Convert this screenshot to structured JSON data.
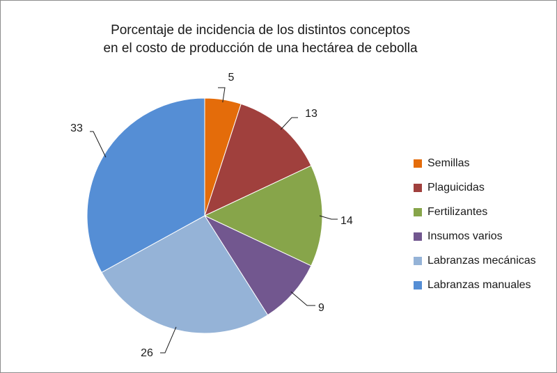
{
  "chart_data": {
    "type": "pie",
    "title_lines": [
      "Porcentaje de incidencia de los distintos conceptos",
      "en el costo de producción de una hectárea de cebolla"
    ],
    "legend_position": "right",
    "slices": [
      {
        "label": "Semillas",
        "value": 5,
        "color": "#e46c0a"
      },
      {
        "label": "Plaguicidas",
        "value": 13,
        "color": "#a0403d"
      },
      {
        "label": "Fertilizantes",
        "value": 14,
        "color": "#87a54a"
      },
      {
        "label": "Insumos varios",
        "value": 9,
        "color": "#72578f"
      },
      {
        "label": "Labranzas mecánicas",
        "value": 26,
        "color": "#95b3d7"
      },
      {
        "label": "Labranzas manuales",
        "value": 33,
        "color": "#558ed5"
      }
    ]
  }
}
